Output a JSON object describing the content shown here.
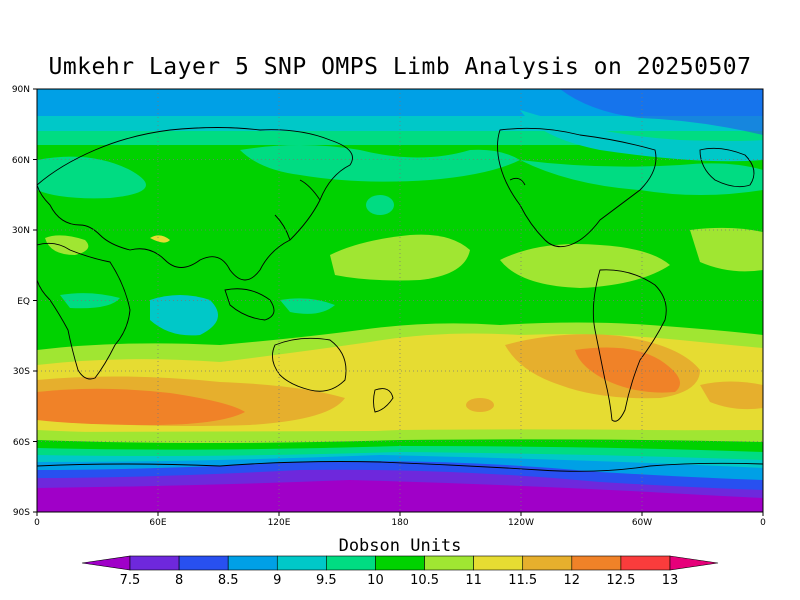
{
  "title": "Umkehr Layer 5 SNP OMPS Limb Analysis on 20250507",
  "colorbar": {
    "title": "Dobson Units",
    "levels": [
      "7.5",
      "8",
      "8.5",
      "9",
      "9.5",
      "10",
      "10.5",
      "11",
      "11.5",
      "12",
      "12.5",
      "13"
    ],
    "colors": [
      "#a000c8",
      "#6e28dc",
      "#2850f0",
      "#00a0e6",
      "#00c8c8",
      "#00dc82",
      "#00d200",
      "#a0e632",
      "#e6dc32",
      "#e6af2d",
      "#f08228",
      "#fa3c3c",
      "#e6007a"
    ]
  },
  "axes": {
    "lat_labels": [
      "90N",
      "60N",
      "30N",
      "EQ",
      "30S",
      "60S",
      "90S"
    ],
    "lon_labels": [
      "0",
      "60E",
      "120E",
      "180",
      "120W",
      "60W",
      "0"
    ]
  }
}
